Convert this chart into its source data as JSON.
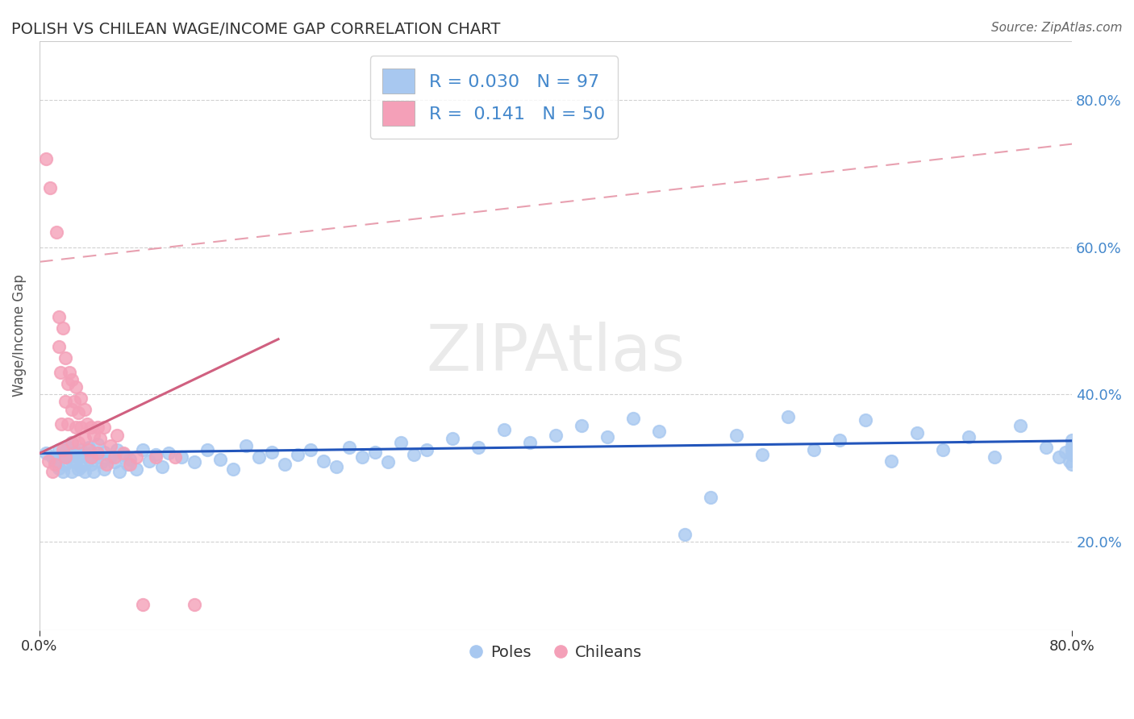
{
  "title": "POLISH VS CHILEAN WAGE/INCOME GAP CORRELATION CHART",
  "source_text": "Source: ZipAtlas.com",
  "ylabel": "Wage/Income Gap",
  "xlim": [
    0.0,
    0.8
  ],
  "ylim": [
    0.08,
    0.88
  ],
  "ytick_labels_right": [
    "20.0%",
    "40.0%",
    "60.0%",
    "80.0%"
  ],
  "ytick_vals_right": [
    0.2,
    0.4,
    0.6,
    0.8
  ],
  "poles_color": "#A8C8F0",
  "chileans_color": "#F4A0B8",
  "poles_R": 0.03,
  "poles_N": 97,
  "chileans_R": 0.141,
  "chileans_N": 50,
  "trend_color_poles": "#2255BB",
  "trend_color_chileans": "#D06080",
  "dashed_line_color": "#E8A0B0",
  "background_color": "#FFFFFF",
  "watermark": "ZIPAtlas",
  "legend_color": "#4488CC",
  "title_color": "#333333",
  "poles_x": [
    0.005,
    0.01,
    0.012,
    0.015,
    0.015,
    0.018,
    0.018,
    0.02,
    0.02,
    0.022,
    0.022,
    0.025,
    0.025,
    0.025,
    0.028,
    0.028,
    0.03,
    0.03,
    0.032,
    0.032,
    0.035,
    0.035,
    0.038,
    0.038,
    0.04,
    0.04,
    0.042,
    0.045,
    0.045,
    0.048,
    0.05,
    0.05,
    0.055,
    0.058,
    0.06,
    0.062,
    0.065,
    0.068,
    0.07,
    0.075,
    0.08,
    0.085,
    0.09,
    0.095,
    0.1,
    0.11,
    0.12,
    0.13,
    0.14,
    0.15,
    0.16,
    0.17,
    0.18,
    0.19,
    0.2,
    0.21,
    0.22,
    0.23,
    0.24,
    0.25,
    0.26,
    0.27,
    0.28,
    0.29,
    0.3,
    0.32,
    0.34,
    0.36,
    0.38,
    0.4,
    0.42,
    0.44,
    0.46,
    0.48,
    0.5,
    0.52,
    0.54,
    0.56,
    0.58,
    0.6,
    0.62,
    0.64,
    0.66,
    0.68,
    0.7,
    0.72,
    0.74,
    0.76,
    0.78,
    0.79,
    0.795,
    0.798,
    0.8,
    0.8,
    0.8,
    0.8,
    0.8
  ],
  "poles_y": [
    0.32,
    0.315,
    0.31,
    0.325,
    0.3,
    0.318,
    0.295,
    0.322,
    0.305,
    0.315,
    0.328,
    0.31,
    0.295,
    0.335,
    0.308,
    0.322,
    0.315,
    0.298,
    0.325,
    0.302,
    0.318,
    0.295,
    0.312,
    0.328,
    0.305,
    0.32,
    0.295,
    0.315,
    0.332,
    0.308,
    0.322,
    0.298,
    0.315,
    0.308,
    0.325,
    0.295,
    0.318,
    0.305,
    0.312,
    0.298,
    0.325,
    0.31,
    0.318,
    0.302,
    0.32,
    0.315,
    0.308,
    0.325,
    0.312,
    0.298,
    0.33,
    0.315,
    0.322,
    0.305,
    0.318,
    0.325,
    0.31,
    0.302,
    0.328,
    0.315,
    0.322,
    0.308,
    0.335,
    0.318,
    0.325,
    0.34,
    0.328,
    0.352,
    0.335,
    0.345,
    0.358,
    0.342,
    0.368,
    0.35,
    0.21,
    0.26,
    0.345,
    0.318,
    0.37,
    0.325,
    0.338,
    0.365,
    0.31,
    0.348,
    0.325,
    0.342,
    0.315,
    0.358,
    0.328,
    0.315,
    0.322,
    0.31,
    0.33,
    0.318,
    0.305,
    0.325,
    0.338
  ],
  "chileans_x": [
    0.005,
    0.007,
    0.008,
    0.01,
    0.012,
    0.013,
    0.015,
    0.015,
    0.016,
    0.017,
    0.018,
    0.018,
    0.02,
    0.02,
    0.02,
    0.022,
    0.022,
    0.023,
    0.025,
    0.025,
    0.025,
    0.027,
    0.028,
    0.028,
    0.03,
    0.03,
    0.032,
    0.032,
    0.035,
    0.035,
    0.037,
    0.038,
    0.04,
    0.04,
    0.042,
    0.045,
    0.045,
    0.047,
    0.05,
    0.052,
    0.055,
    0.058,
    0.06,
    0.065,
    0.07,
    0.075,
    0.08,
    0.09,
    0.105,
    0.12
  ],
  "chileans_y": [
    0.72,
    0.31,
    0.68,
    0.295,
    0.305,
    0.62,
    0.465,
    0.505,
    0.43,
    0.36,
    0.49,
    0.325,
    0.45,
    0.39,
    0.315,
    0.415,
    0.36,
    0.43,
    0.38,
    0.335,
    0.42,
    0.39,
    0.41,
    0.355,
    0.375,
    0.335,
    0.395,
    0.355,
    0.38,
    0.34,
    0.36,
    0.325,
    0.355,
    0.315,
    0.345,
    0.355,
    0.32,
    0.34,
    0.355,
    0.305,
    0.33,
    0.315,
    0.345,
    0.32,
    0.305,
    0.315,
    0.115,
    0.315,
    0.315,
    0.115
  ]
}
